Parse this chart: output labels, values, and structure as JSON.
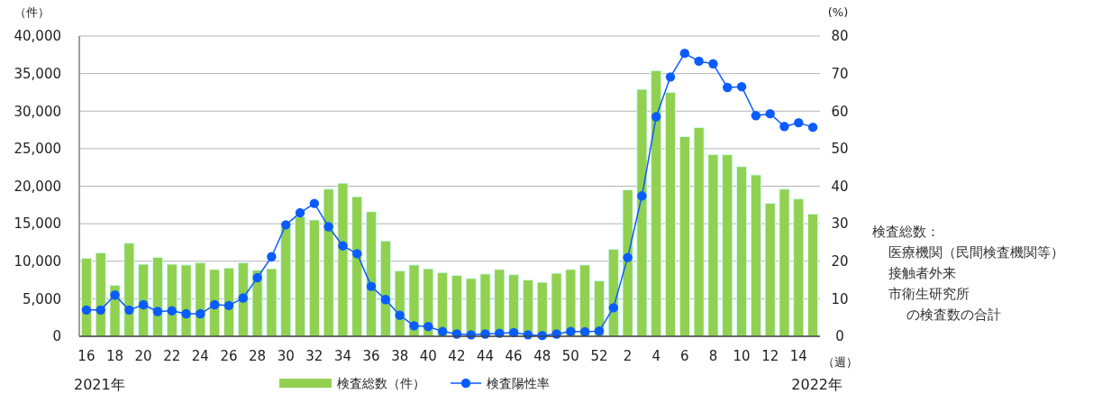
{
  "chart_data": {
    "type": "bar",
    "ylabel": "（件）",
    "y2label": "(%)",
    "xlabel": "（週）",
    "categories": [
      "16",
      null,
      "18",
      null,
      "20",
      null,
      "22",
      null,
      "24",
      null,
      "26",
      null,
      "28",
      null,
      "30",
      null,
      "32",
      null,
      "34",
      null,
      "36",
      null,
      "38",
      null,
      "40",
      null,
      "42",
      null,
      "44",
      null,
      "46",
      null,
      "48",
      null,
      "50",
      null,
      "52",
      null,
      "2",
      null,
      "4",
      null,
      "6",
      null,
      "8",
      null,
      "10",
      null,
      "12",
      null,
      "14",
      null
    ],
    "series": [
      {
        "name": "検査総数（件）",
        "color": "#92d050",
        "values": [
          10400,
          11100,
          6800,
          12400,
          9600,
          10500,
          9600,
          9500,
          9800,
          8900,
          9100,
          9800,
          8800,
          9000,
          14600,
          15900,
          15500,
          19600,
          20400,
          18600,
          16600,
          12700,
          8700,
          9500,
          9000,
          8500,
          8100,
          7700,
          8300,
          8900,
          8200,
          7500,
          7200,
          8400,
          8900,
          9500,
          7400,
          11600,
          19500,
          32900,
          35400,
          32500,
          26600,
          27800,
          24200,
          24200,
          22600,
          21500,
          17700,
          19600,
          18300,
          16300
        ]
      },
      {
        "name": "検査陽性率",
        "type": "line",
        "axis": "y2",
        "color": "#0a5cff",
        "marker": "circle",
        "values": [
          7.0,
          7.0,
          11.0,
          7.0,
          8.4,
          6.6,
          6.8,
          6.0,
          6.0,
          8.4,
          8.2,
          10.2,
          15.6,
          21.2,
          29.7,
          32.9,
          35.4,
          29.2,
          24.1,
          22.0,
          13.3,
          9.8,
          5.6,
          2.8,
          2.6,
          1.3,
          0.6,
          0.4,
          0.6,
          0.8,
          1.0,
          0.4,
          0.2,
          0.6,
          1.3,
          1.2,
          1.4,
          7.6,
          21.0,
          37.4,
          58.5,
          69.1,
          75.4,
          73.3,
          72.6,
          66.3,
          66.5,
          58.8,
          59.3,
          55.9,
          56.9,
          55.7
        ]
      }
    ],
    "ylim": [
      0,
      40000
    ],
    "yticks": [
      {
        "value": 0,
        "label": "0"
      },
      {
        "value": 5000,
        "label": "5,000"
      },
      {
        "value": 10000,
        "label": "10,000"
      },
      {
        "value": 15000,
        "label": "15,000"
      },
      {
        "value": 20000,
        "label": "20,000"
      },
      {
        "value": 25000,
        "label": "25,000"
      },
      {
        "value": 30000,
        "label": "30,000"
      },
      {
        "value": 35000,
        "label": "35,000"
      },
      {
        "value": 40000,
        "label": "40,000"
      }
    ],
    "y2lim": [
      0,
      80
    ],
    "y2ticks": [
      0,
      10,
      20,
      30,
      40,
      50,
      60,
      70,
      80
    ],
    "grid": "y",
    "legend": "bottom",
    "annotations": [
      "2021年",
      "2022年",
      "検査総数：",
      "医療機関（民間検査機関等）",
      "接触者外来",
      "市衛生研究所",
      "の検査数の合計"
    ]
  }
}
